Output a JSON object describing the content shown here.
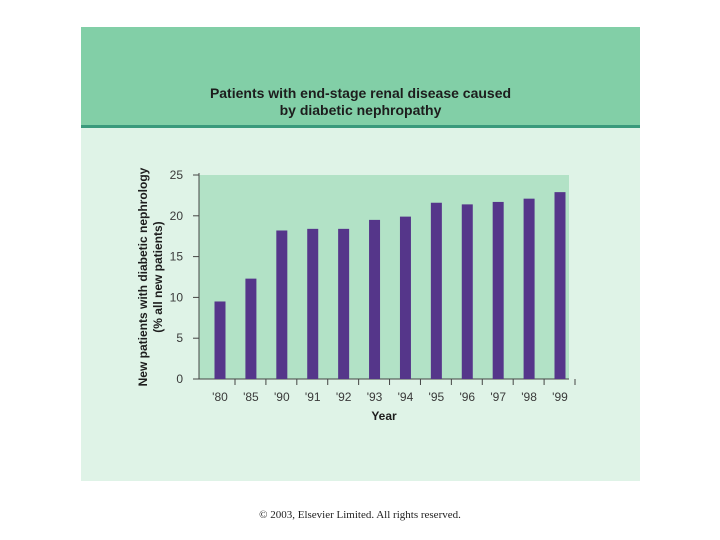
{
  "colors": {
    "header": "#82cfa7",
    "panel": "#dff3e7",
    "plot_area": "#b2e2c6",
    "bar": "#55368a",
    "axis": "#444444"
  },
  "chart_data": {
    "type": "bar",
    "title_lines": [
      "Patients with end-stage renal disease caused",
      "by diabetic nephropathy"
    ],
    "categories": [
      "'80",
      "'85",
      "'90",
      "'91",
      "'92",
      "'93",
      "'94",
      "'95",
      "'96",
      "'97",
      "'98",
      "'99"
    ],
    "values": [
      9.5,
      12.3,
      18.2,
      18.4,
      18.4,
      19.5,
      19.9,
      21.6,
      21.4,
      21.7,
      22.1,
      22.9
    ],
    "xlabel": "Year",
    "ylabel_lines": [
      "New patients with diabetic nephrology",
      "(% all new patients)"
    ],
    "yticks": [
      0,
      5,
      10,
      15,
      20,
      25
    ],
    "ylim": [
      0,
      25
    ],
    "grid": false,
    "legend": "none"
  },
  "footer": {
    "copyright": "© 2003, Elsevier Limited. All rights reserved."
  }
}
